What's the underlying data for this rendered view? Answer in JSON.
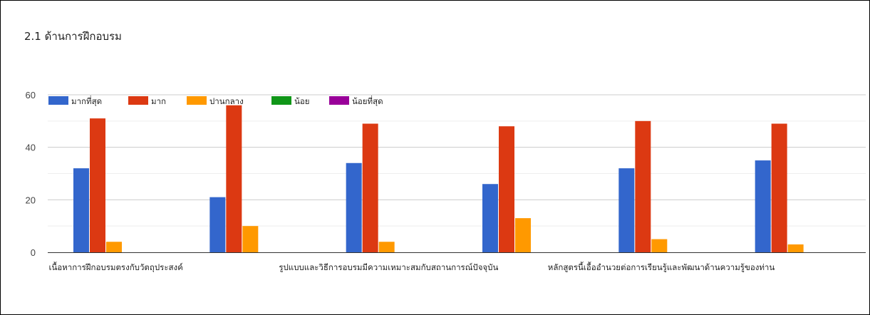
{
  "chart_data": {
    "type": "bar",
    "title": "2.1 ด้านการฝึกอบรม",
    "categories": [
      "เนื้อหาการฝึกอบรมตรงกับวัตถุประสงค์",
      "",
      "รูปแบบและวิธีการอบรมมีความเหมาะสมกับสถานการณ์ปัจจุบัน",
      "",
      "หลักสูตรนี้เอื้ออำนวยต่อการเรียนรู้และพัฒนาด้านความรู้ของท่าน",
      ""
    ],
    "series": [
      {
        "name": "มากที่สุด",
        "color": "#3366cc",
        "values": [
          32,
          21,
          34,
          26,
          32,
          35
        ]
      },
      {
        "name": "มาก",
        "color": "#dc3912",
        "values": [
          51,
          56,
          49,
          48,
          50,
          49
        ]
      },
      {
        "name": "ปานกลาง",
        "color": "#ff9900",
        "values": [
          4,
          10,
          4,
          13,
          5,
          3
        ]
      },
      {
        "name": "น้อย",
        "color": "#109618",
        "values": [
          0,
          0,
          0,
          0,
          0,
          0
        ]
      },
      {
        "name": "น้อยที่สุด",
        "color": "#990099",
        "values": [
          0,
          0,
          0,
          0,
          0,
          0
        ]
      }
    ],
    "ylim": [
      0,
      60
    ],
    "yticks": [
      0,
      20,
      40,
      60
    ],
    "grid": true,
    "legend": "top-left"
  }
}
